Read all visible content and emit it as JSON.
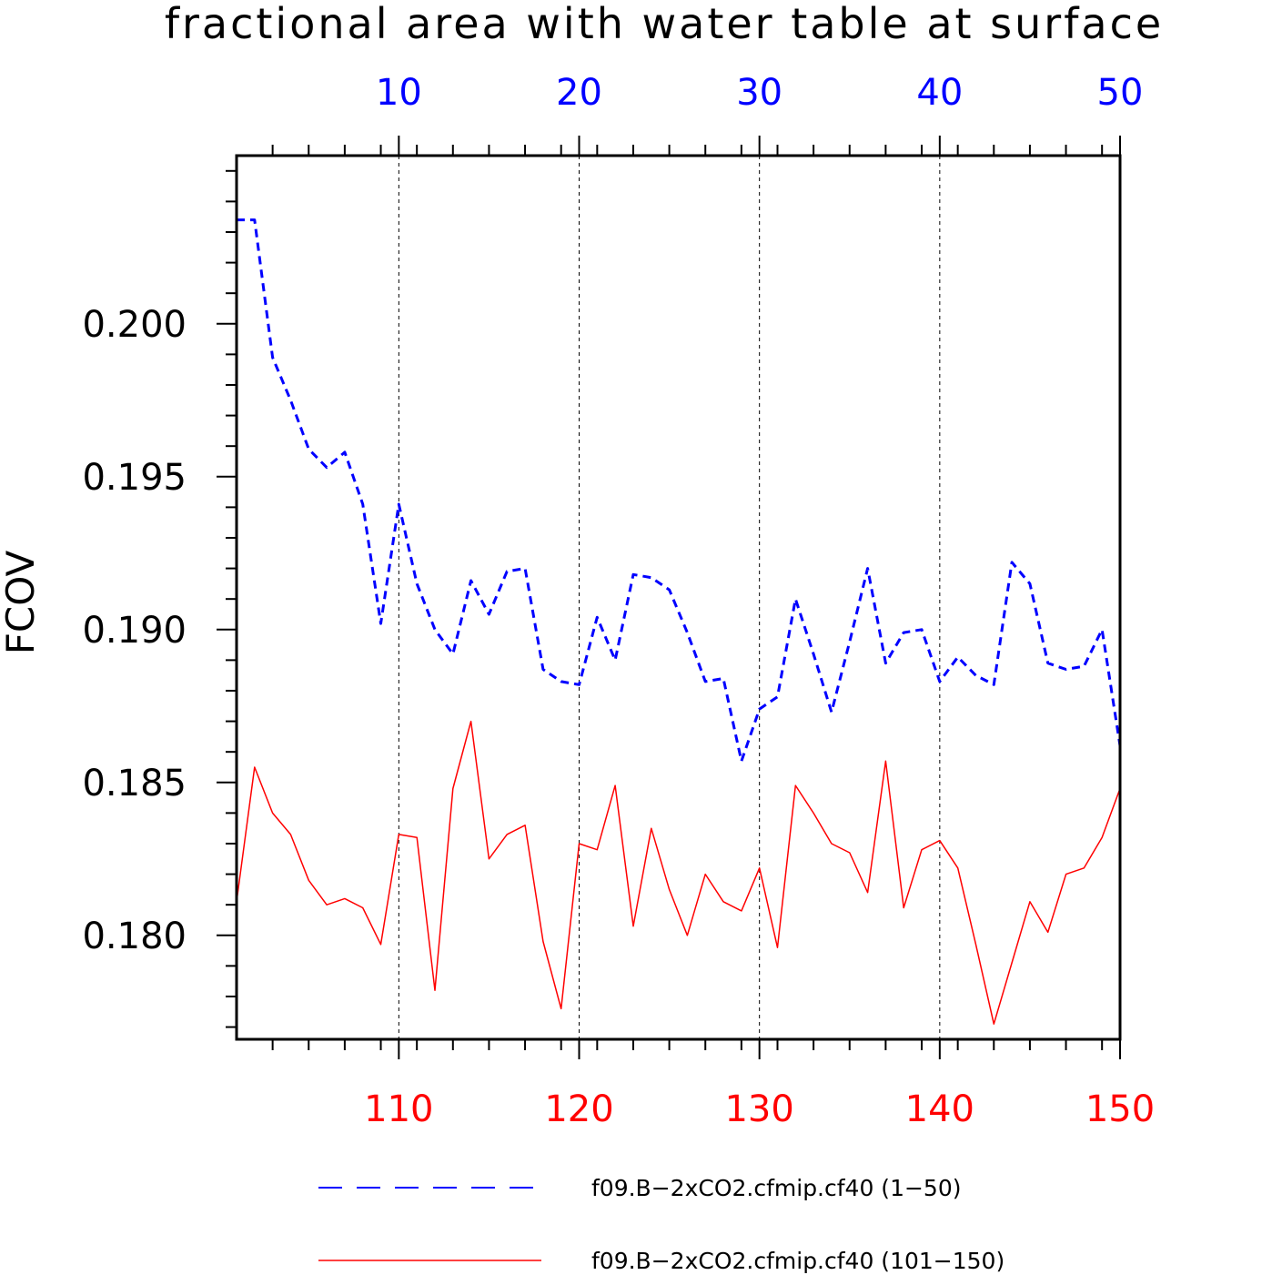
{
  "chart_data": {
    "type": "line",
    "title": "fractional area with water table at surface",
    "ylabel": "FCOV",
    "ylim": [
      0.1766,
      0.2055
    ],
    "y_ticks": [
      "0.200",
      "0.195",
      "0.190",
      "0.185",
      "0.180"
    ],
    "y_tick_values": [
      0.2,
      0.195,
      0.19,
      0.185,
      0.18
    ],
    "grid_x": true,
    "legend_position": "bottom",
    "colors": {
      "top_axis": "#0000ff",
      "bottom_axis": "#ff0000"
    },
    "top_axis": {
      "range": [
        1,
        50
      ],
      "ticks": [
        "10",
        "20",
        "30",
        "40",
        "50"
      ],
      "tick_values": [
        10,
        20,
        30,
        40,
        50
      ]
    },
    "bottom_axis": {
      "range": [
        101,
        150
      ],
      "ticks": [
        "110",
        "120",
        "130",
        "140",
        "150"
      ],
      "tick_values": [
        110,
        120,
        130,
        140,
        150
      ]
    },
    "series": [
      {
        "name": "f09.B−2xCO2.cfmip.cf40 (1−50)",
        "axis": "top",
        "color": "#0000ff",
        "style": "dashed",
        "values": [
          0.2034,
          0.2034,
          0.1989,
          0.1975,
          0.1959,
          0.1953,
          0.1958,
          0.1941,
          0.1902,
          0.1941,
          0.1915,
          0.19,
          0.1892,
          0.1916,
          0.1905,
          0.1919,
          0.192,
          0.1887,
          0.1883,
          0.1882,
          0.1904,
          0.189,
          0.1918,
          0.1917,
          0.1913,
          0.1899,
          0.1883,
          0.1884,
          0.1857,
          0.1874,
          0.1878,
          0.191,
          0.1892,
          0.1873,
          0.1896,
          0.192,
          0.1889,
          0.1899,
          0.19,
          0.1883,
          0.1891,
          0.1885,
          0.1882,
          0.1922,
          0.1915,
          0.1889,
          0.1887,
          0.1888,
          0.19,
          0.1862
        ]
      },
      {
        "name": "f09.B−2xCO2.cfmip.cf40 (101−150)",
        "axis": "bottom",
        "color": "#ff0000",
        "style": "solid",
        "values": [
          0.1811,
          0.1855,
          0.184,
          0.1833,
          0.1818,
          0.181,
          0.1812,
          0.1809,
          0.1797,
          0.1833,
          0.1832,
          0.1782,
          0.1848,
          0.187,
          0.1825,
          0.1833,
          0.1836,
          0.1798,
          0.1776,
          0.183,
          0.1828,
          0.1849,
          0.1803,
          0.1835,
          0.1815,
          0.18,
          0.182,
          0.1811,
          0.1808,
          0.1822,
          0.1796,
          0.1849,
          0.184,
          0.183,
          0.1827,
          0.1814,
          0.1857,
          0.1809,
          0.1828,
          0.1831,
          0.1822,
          0.1797,
          0.1771,
          0.1791,
          0.1811,
          0.1801,
          0.182,
          0.1822,
          0.1832,
          0.1848
        ]
      }
    ]
  }
}
